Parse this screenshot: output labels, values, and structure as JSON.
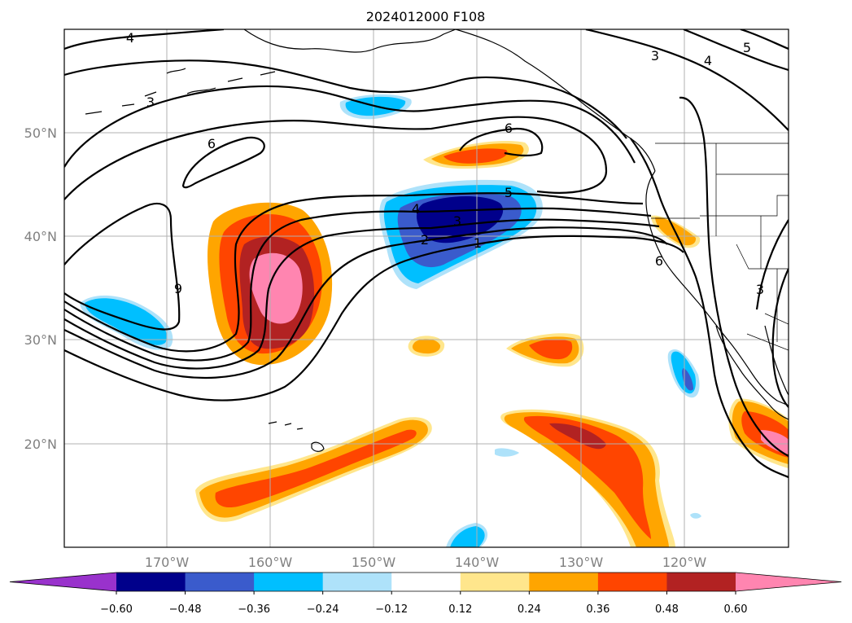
{
  "title": "2024012000 F108",
  "lat_labels": [
    "50°N",
    "40°N",
    "30°N",
    "20°N"
  ],
  "lon_labels": [
    "170°W",
    "160°W",
    "150°W",
    "140°W",
    "130°W",
    "120°W"
  ],
  "colorbar": {
    "tick_labels": [
      "−0.60",
      "−0.48",
      "−0.36",
      "−0.24",
      "−0.12",
      "0.12",
      "0.24",
      "0.36",
      "0.48",
      "0.60"
    ],
    "colors": [
      "#9932cc",
      "#00008b",
      "#3a5bcc",
      "#00bfff",
      "#aee2fa",
      "#ffffff",
      "#ffe68c",
      "#ffa500",
      "#ff4500",
      "#b22222",
      "#ff85b0"
    ]
  },
  "contour_labels": [
    "4",
    "3",
    "6",
    "6",
    "4",
    "5",
    "3",
    "2",
    "1",
    "3",
    "4",
    "5",
    "9",
    "3",
    "6"
  ]
}
